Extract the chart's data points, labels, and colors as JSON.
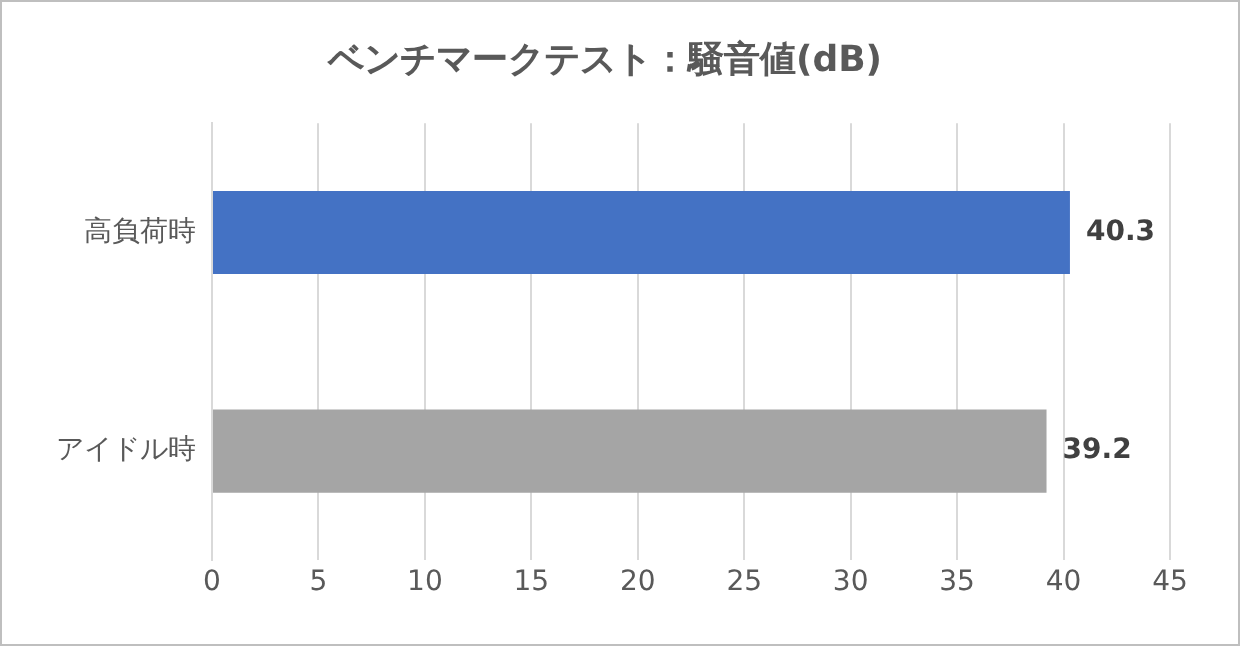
{
  "chart_data": {
    "type": "bar",
    "orientation": "horizontal",
    "title": "ベンチマークテスト：騒音値(dB)",
    "categories": [
      "高負荷時",
      "アイドル時"
    ],
    "values": [
      40.3,
      39.2
    ],
    "colors": [
      "#4472c4",
      "#a5a5a5"
    ],
    "xlim": [
      0,
      45
    ],
    "xticks": [
      0,
      5,
      10,
      15,
      20,
      25,
      30,
      35,
      40,
      45
    ],
    "grid": "x",
    "data_labels": true,
    "legend": false
  }
}
